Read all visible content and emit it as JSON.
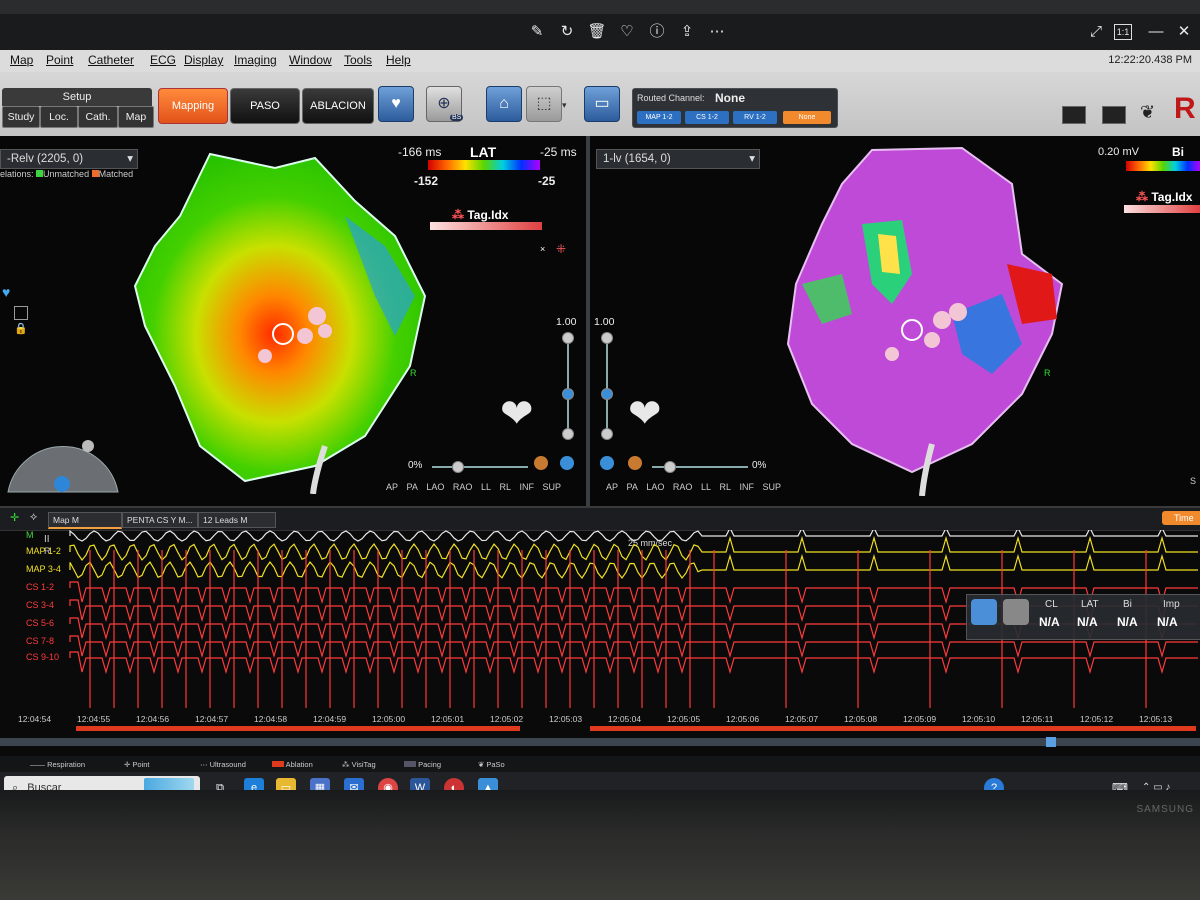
{
  "viewer": {
    "icons": [
      "edit-icon",
      "rotate-icon",
      "delete-icon",
      "favorite-icon",
      "info-icon",
      "share-icon",
      "more-icon"
    ],
    "window_icons": [
      "expand-icon",
      "fit-icon",
      "minimize-icon",
      "close-icon"
    ],
    "fit_label": "1:1"
  },
  "menu": {
    "items": [
      "Map",
      "Point",
      "Catheter",
      "ECG",
      "Display",
      "Imaging",
      "Window",
      "Tools",
      "Help"
    ],
    "clock": "12:22:20.438 PM"
  },
  "toolbar": {
    "setup_label": "Setup",
    "setup_buttons": [
      "Study",
      "Loc.",
      "Cath.",
      "Map"
    ],
    "mode_buttons": [
      "Mapping",
      "PASO",
      "ABLACION"
    ],
    "routed_label": "Routed Channel:",
    "routed_value": "None",
    "channel_buttons": [
      "MAP 1-2",
      "CS 1-2",
      "RV 1-2",
      "None"
    ],
    "icon_badge": "BS"
  },
  "left_map": {
    "dropdown": "-Relv (2205, 0)",
    "relations_prefix": "elations:",
    "unmatched": "Unmatched",
    "matched": "Matched",
    "lat_title": "LAT",
    "range_min": "-166 ms",
    "range_max": "-25 ms",
    "scale_low": "-152",
    "scale_high": "-25",
    "tag_label": "Tag.Idx",
    "opacity_max": "1.00",
    "opacity_pct": "0%",
    "views": [
      "AP",
      "PA",
      "LAO",
      "RAO",
      "LL",
      "RL",
      "INF",
      "SUP"
    ],
    "orient_r": "R"
  },
  "right_map": {
    "dropdown": "1-lv (1654, 0)",
    "voltage": "0.20 mV",
    "bi_label": "Bi",
    "tag_label": "Tag.Idx",
    "opacity_max": "1.00",
    "opacity_pct": "0%",
    "views": [
      "AP",
      "PA",
      "LAO",
      "RAO",
      "LL",
      "RL",
      "INF",
      "SUP"
    ],
    "orient_r": "R",
    "edge_s": "S"
  },
  "signals": {
    "dropdowns": [
      "Map M",
      "PENTA CS Y M...",
      "12 Leads M"
    ],
    "time_button": "Time",
    "speed": "25 mm/sec",
    "channels": [
      {
        "name": "M",
        "color": "#3ddc3d"
      },
      {
        "name": "MAP 1-2",
        "color": "#f0e020"
      },
      {
        "name": "MAP 3-4",
        "color": "#f0e020"
      },
      {
        "name": "CS 1-2",
        "color": "#ff3b3b"
      },
      {
        "name": "CS 3-4",
        "color": "#ff3b3b"
      },
      {
        "name": "CS 5-6",
        "color": "#ff3b3b"
      },
      {
        "name": "CS 7-8",
        "color": "#ff3b3b"
      },
      {
        "name": "CS 9-10",
        "color": "#ff3b3b"
      }
    ],
    "times": [
      "12:04:54",
      "12:04:55",
      "12:04:56",
      "12:04:57",
      "12:04:58",
      "12:04:59",
      "12:05:00",
      "12:05:01",
      "12:05:02",
      "12:05:03",
      "12:05:04",
      "12:05:05",
      "12:05:06",
      "12:05:07",
      "12:05:08",
      "12:05:09",
      "12:05:10",
      "12:05:11",
      "12:05:12",
      "12:05:13"
    ],
    "stats": {
      "headers": [
        "CL",
        "LAT",
        "Bi",
        "Imp"
      ],
      "values": [
        "N/A",
        "N/A",
        "N/A",
        "N/A"
      ]
    }
  },
  "legend": [
    "Respiration",
    "Point",
    "Ultrasound",
    "Ablation",
    "VisiTag",
    "Pacing",
    "PaSo"
  ],
  "taskbar": {
    "search": "Buscar",
    "apps": [
      "task-view-icon",
      "edge-icon",
      "folder-icon",
      "store-icon",
      "mail-icon",
      "chrome-icon",
      "word-icon",
      "app-icon",
      "photos-icon"
    ]
  }
}
